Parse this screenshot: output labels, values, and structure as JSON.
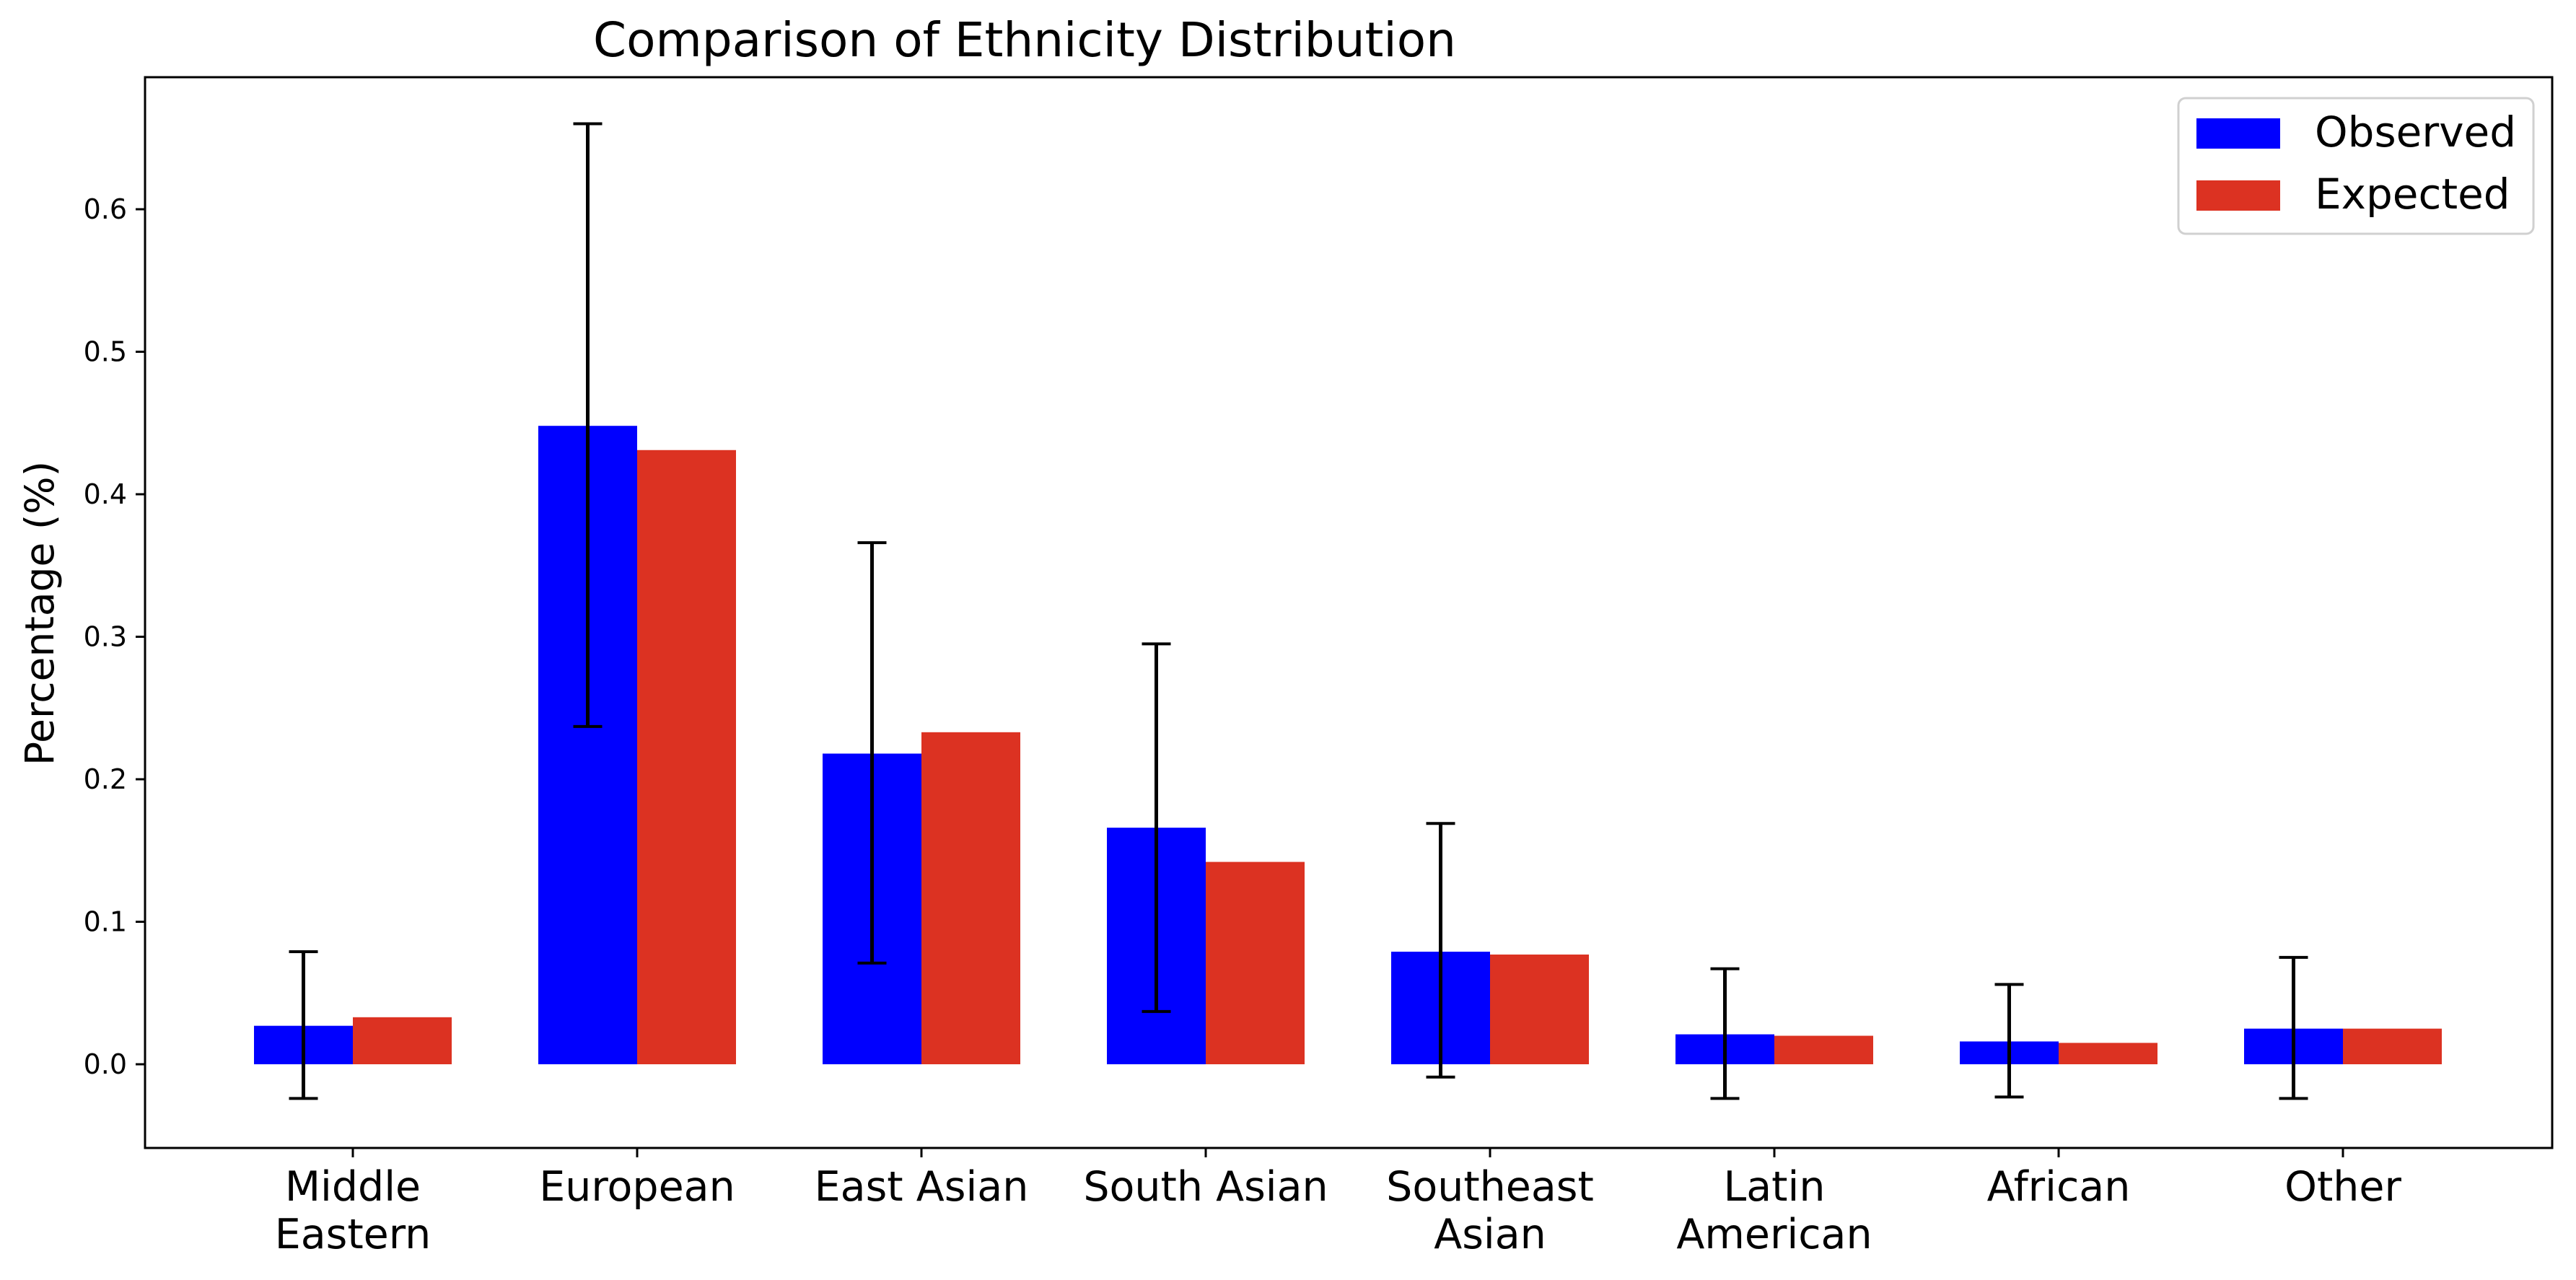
{
  "chart_data": {
    "type": "bar",
    "title": "Comparison of Ethnicity Distribution",
    "xlabel": "",
    "ylabel": "Percentage (%)",
    "ylim": [
      -0.059,
      0.693
    ],
    "yticks": [
      "0.0",
      "0.1",
      "0.2",
      "0.3",
      "0.4",
      "0.5",
      "0.6"
    ],
    "categories": [
      [
        "Middle",
        "Eastern"
      ],
      [
        "European"
      ],
      [
        "East Asian"
      ],
      [
        "South Asian"
      ],
      [
        "Southeast",
        "Asian"
      ],
      [
        "Latin",
        "American"
      ],
      [
        "African"
      ],
      [
        "Other"
      ]
    ],
    "series": [
      {
        "name": "Observed",
        "color": "#0000ff",
        "values": [
          0.027,
          0.448,
          0.218,
          0.166,
          0.079,
          0.021,
          0.016,
          0.025
        ],
        "error_low": [
          -0.024,
          0.237,
          0.071,
          0.037,
          -0.009,
          -0.024,
          -0.023,
          -0.024
        ],
        "error_high": [
          0.079,
          0.66,
          0.366,
          0.295,
          0.169,
          0.067,
          0.056,
          0.075
        ]
      },
      {
        "name": "Expected",
        "color": "#dc3222",
        "values": [
          0.033,
          0.431,
          0.233,
          0.142,
          0.077,
          0.02,
          0.015,
          0.025
        ]
      }
    ],
    "legend": "top-right",
    "grid": false
  }
}
